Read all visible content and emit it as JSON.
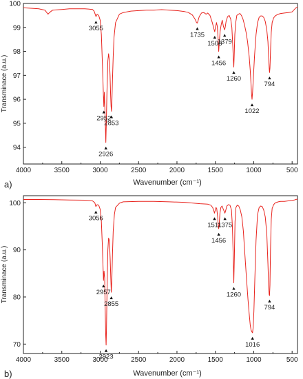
{
  "colors": {
    "trace": "#e8231d",
    "axis": "#222222",
    "marker": "#111111"
  },
  "chart_data": [
    {
      "type": "line",
      "panel_label": "a)",
      "xlabel": "Wavenumber (cm⁻¹)",
      "ylabel": "Transminace (a.u.)",
      "xlim": [
        4000,
        430
      ],
      "ylim": [
        93.3,
        100
      ],
      "x_ticks": [
        4000,
        3500,
        3000,
        2500,
        2000,
        1500,
        1000,
        500
      ],
      "y_ticks": [
        94,
        95,
        96,
        97,
        98,
        99,
        100
      ],
      "grid": false,
      "baseline": 99.8,
      "series": [
        {
          "x": [
            4000,
            3900,
            3800,
            3720,
            3680,
            3660,
            3620,
            3500,
            3400,
            3300,
            3200,
            3100,
            3080,
            3055,
            3040,
            3020,
            3000,
            2985,
            2970,
            2960,
            2952,
            2945,
            2938,
            2932,
            2926,
            2920,
            2912,
            2900,
            2890,
            2880,
            2872,
            2864,
            2858,
            2853,
            2848,
            2840,
            2830,
            2820,
            2800,
            2750,
            2700,
            2600,
            2500,
            2400,
            2300,
            2200,
            2100,
            2000,
            1900,
            1850,
            1800,
            1760,
            1745,
            1735,
            1725,
            1710,
            1680,
            1650,
            1620,
            1600,
            1570,
            1540,
            1520,
            1508,
            1495,
            1485,
            1475,
            1465,
            1456,
            1447,
            1437,
            1425,
            1410,
            1395,
            1385,
            1379,
            1372,
            1360,
            1340,
            1320,
            1300,
            1285,
            1272,
            1266,
            1260,
            1254,
            1246,
            1235,
            1220,
            1200,
            1180,
            1160,
            1140,
            1120,
            1100,
            1080,
            1060,
            1045,
            1035,
            1028,
            1022,
            1015,
            1005,
            990,
            970,
            950,
            930,
            910,
            890,
            870,
            850,
            830,
            815,
            805,
            799,
            794,
            789,
            782,
            772,
            760,
            740,
            720,
            700,
            680,
            650,
            600,
            550,
            500,
            470,
            450,
            430
          ],
          "y": [
            99.82,
            99.8,
            99.78,
            99.72,
            99.55,
            99.62,
            99.72,
            99.75,
            99.78,
            99.78,
            99.78,
            99.75,
            99.68,
            99.45,
            99.55,
            99.5,
            99.3,
            98.7,
            97.4,
            96.4,
            95.7,
            96.3,
            95.5,
            94.8,
            94.2,
            95,
            96.3,
            97.6,
            97.9,
            97.6,
            97,
            96.2,
            95.7,
            95.5,
            95.8,
            96.8,
            97.8,
            98.6,
            99.2,
            99.55,
            99.62,
            99.68,
            99.7,
            99.72,
            99.72,
            99.74,
            99.72,
            99.7,
            99.66,
            99.62,
            99.52,
            99.32,
            99.2,
            99.18,
            99.28,
            99.45,
            99.6,
            99.62,
            99.55,
            99.6,
            99.5,
            99.2,
            98.95,
            98.82,
            99.05,
            99.2,
            99.05,
            98.6,
            98.0,
            98.45,
            98.85,
            99.1,
            99.3,
            99.05,
            98.95,
            98.9,
            99.0,
            99.25,
            99.45,
            99.5,
            99.35,
            99.0,
            98.2,
            97.7,
            97.35,
            97.85,
            98.7,
            99.2,
            99.5,
            99.55,
            99.58,
            99.5,
            99.35,
            99.1,
            98.8,
            98.4,
            97.8,
            97.2,
            96.6,
            96.2,
            96.0,
            96.3,
            96.9,
            97.8,
            98.7,
            99.2,
            99.42,
            99.48,
            99.48,
            99.42,
            99.25,
            98.9,
            98.4,
            97.7,
            97.3,
            97.12,
            97.3,
            98.0,
            98.8,
            99.2,
            99.4,
            99.48,
            99.52,
            99.55,
            99.58,
            99.6,
            99.62,
            99.65,
            99.75,
            99.82,
            99.85
          ]
        }
      ],
      "annotations": [
        {
          "label": "3055",
          "x": 3055,
          "y": 99.45
        },
        {
          "label": "2952",
          "x": 2952,
          "y": 95.7
        },
        {
          "label": "2926",
          "x": 2926,
          "y": 94.2
        },
        {
          "label": "2853",
          "x": 2853,
          "y": 95.5
        },
        {
          "label": "1735",
          "x": 1735,
          "y": 99.18
        },
        {
          "label": "1508",
          "x": 1508,
          "y": 98.82
        },
        {
          "label": "1456",
          "x": 1456,
          "y": 98.0
        },
        {
          "label": "1379",
          "x": 1379,
          "y": 98.9
        },
        {
          "label": "1260",
          "x": 1260,
          "y": 97.35
        },
        {
          "label": "1022",
          "x": 1022,
          "y": 96.0
        },
        {
          "label": "794",
          "x": 794,
          "y": 97.12
        }
      ]
    },
    {
      "type": "line",
      "panel_label": "b)",
      "xlabel": "Wavenumber (cm⁻¹)",
      "ylabel": "Transminace (a.u.)",
      "xlim": [
        4000,
        430
      ],
      "ylim": [
        68,
        101.5
      ],
      "x_ticks": [
        4000,
        3500,
        3000,
        2500,
        2000,
        1500,
        1000,
        500
      ],
      "y_ticks": [
        70,
        80,
        90,
        100
      ],
      "grid": false,
      "baseline": 100.6,
      "series": [
        {
          "x": [
            4000,
            3800,
            3600,
            3400,
            3200,
            3100,
            3070,
            3056,
            3040,
            3020,
            3000,
            2985,
            2972,
            2962,
            2957,
            2950,
            2942,
            2935,
            2928,
            2923,
            2918,
            2910,
            2900,
            2890,
            2880,
            2870,
            2862,
            2855,
            2848,
            2840,
            2830,
            2815,
            2800,
            2750,
            2700,
            2500,
            2300,
            2100,
            1900,
            1700,
            1600,
            1560,
            1535,
            1520,
            1511,
            1502,
            1492,
            1482,
            1470,
            1462,
            1456,
            1450,
            1440,
            1428,
            1412,
            1396,
            1385,
            1375,
            1365,
            1350,
            1330,
            1310,
            1290,
            1278,
            1268,
            1260,
            1252,
            1244,
            1232,
            1215,
            1195,
            1175,
            1155,
            1135,
            1115,
            1095,
            1075,
            1060,
            1045,
            1035,
            1025,
            1016,
            1008,
            998,
            985,
            970,
            950,
            930,
            910,
            890,
            870,
            850,
            830,
            815,
            805,
            799,
            794,
            789,
            782,
            772,
            760,
            740,
            720,
            700,
            680,
            650,
            600,
            550,
            500,
            470,
            450,
            430
          ],
          "y": [
            100.7,
            100.7,
            100.65,
            100.6,
            100.55,
            100.4,
            100.0,
            99.2,
            99.6,
            99.5,
            98.6,
            96.0,
            91.0,
            86.0,
            83.5,
            85.5,
            84.0,
            78.0,
            72.0,
            69.8,
            73.0,
            82.0,
            90.0,
            92.5,
            92.0,
            88.0,
            84.0,
            81.0,
            83.5,
            89.0,
            94.0,
            97.5,
            99.0,
            99.9,
            100.2,
            100.3,
            100.3,
            100.2,
            100.1,
            99.8,
            99.7,
            99.5,
            99.0,
            98.3,
            97.8,
            98.4,
            99.0,
            98.8,
            97.0,
            95.2,
            94.5,
            95.5,
            97.8,
            99.0,
            99.3,
            98.6,
            98.2,
            97.8,
            98.4,
            99.3,
            99.6,
            99.5,
            98.5,
            95.0,
            89.0,
            83.0,
            89.0,
            96.0,
            99.0,
            99.5,
            99.3,
            98.5,
            97.0,
            94.0,
            89.0,
            84.0,
            79.5,
            76.5,
            74.0,
            73.0,
            72.6,
            72.4,
            73.5,
            77.0,
            84.0,
            92.0,
            97.5,
            99.0,
            99.3,
            99.2,
            98.5,
            97.0,
            93.5,
            87.0,
            82.0,
            80.5,
            80.3,
            82.5,
            90.0,
            96.5,
            98.8,
            99.6,
            100.0,
            100.1,
            100.2,
            100.3,
            100.3,
            100.4,
            100.5,
            100.6,
            100.7,
            100.8
          ]
        }
      ],
      "annotations": [
        {
          "label": "3056",
          "x": 3056,
          "y": 99.2
        },
        {
          "label": "2957",
          "x": 2957,
          "y": 83.5
        },
        {
          "label": "2923",
          "x": 2923,
          "y": 69.8
        },
        {
          "label": "2855",
          "x": 2855,
          "y": 81.0
        },
        {
          "label": "1511",
          "x": 1511,
          "y": 97.8
        },
        {
          "label": "1456",
          "x": 1456,
          "y": 94.5
        },
        {
          "label": "1375",
          "x": 1375,
          "y": 97.8
        },
        {
          "label": "1260",
          "x": 1260,
          "y": 83.0
        },
        {
          "label": "1016",
          "x": 1016,
          "y": 72.4
        },
        {
          "label": "794",
          "x": 794,
          "y": 80.3
        }
      ]
    }
  ]
}
